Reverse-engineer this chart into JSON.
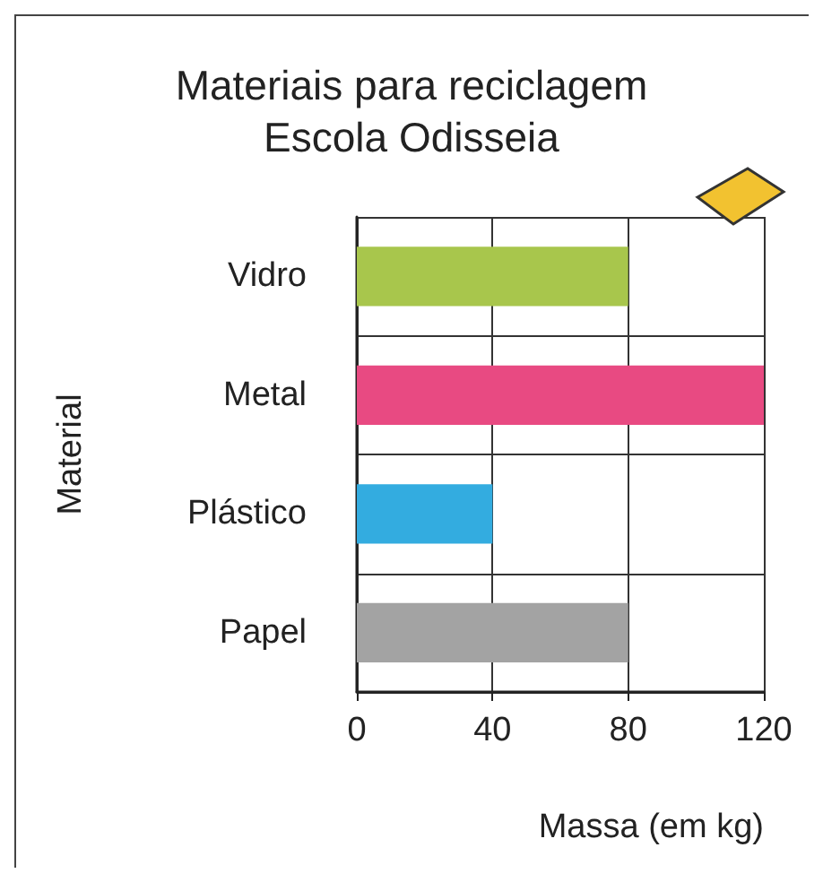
{
  "chart_data": {
    "type": "bar",
    "orientation": "horizontal",
    "title": "Materiais para reciclagem",
    "subtitle": "Escola Odisseia",
    "xlabel": "Massa (em kg)",
    "ylabel": "Material",
    "categories": [
      "Vidro",
      "Metal",
      "Plástico",
      "Papel"
    ],
    "values": [
      80,
      120,
      40,
      80
    ],
    "colors": [
      "#a8c64c",
      "#e84a82",
      "#33ace0",
      "#a3a3a3"
    ],
    "xlim": [
      0,
      120
    ],
    "xticks": [
      0,
      40,
      80,
      120
    ],
    "grid": true
  }
}
